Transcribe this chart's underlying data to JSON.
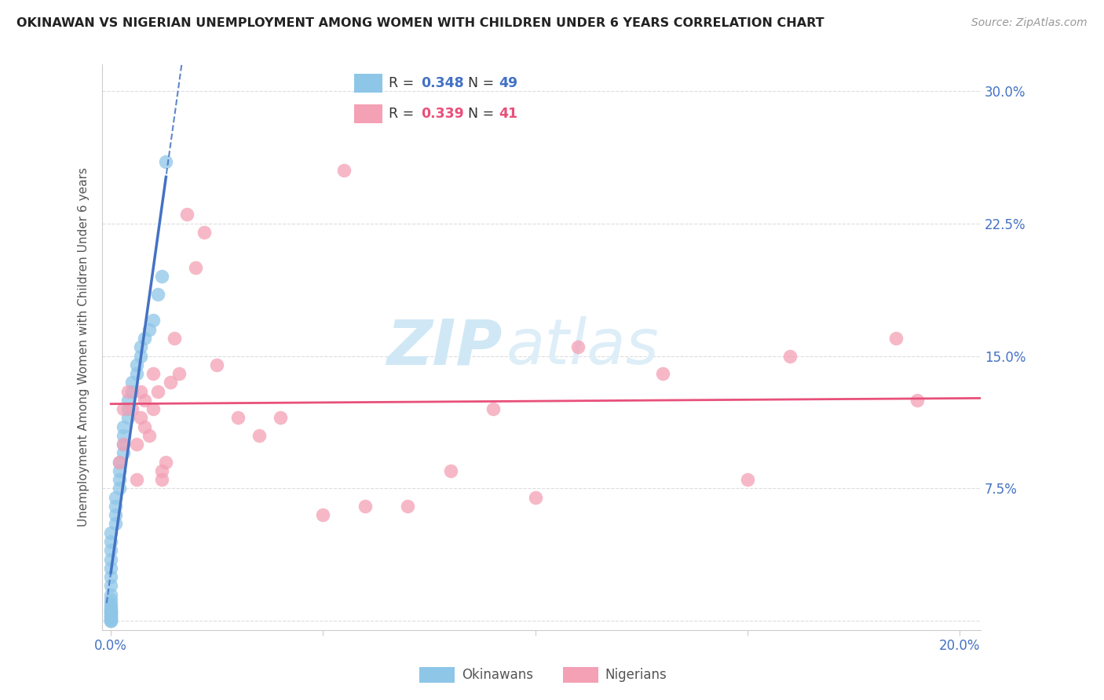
{
  "title": "OKINAWAN VS NIGERIAN UNEMPLOYMENT AMONG WOMEN WITH CHILDREN UNDER 6 YEARS CORRELATION CHART",
  "source": "Source: ZipAtlas.com",
  "ylabel": "Unemployment Among Women with Children Under 6 years",
  "xlim": [
    -0.002,
    0.205
  ],
  "ylim": [
    -0.005,
    0.315
  ],
  "x_tick_positions": [
    0.0,
    0.05,
    0.1,
    0.15,
    0.2
  ],
  "x_tick_labels": [
    "0.0%",
    "",
    "",
    "",
    "20.0%"
  ],
  "y_tick_positions": [
    0.0,
    0.075,
    0.15,
    0.225,
    0.3
  ],
  "y_tick_labels": [
    "",
    "7.5%",
    "15.0%",
    "22.5%",
    "30.0%"
  ],
  "okinawan_R": 0.348,
  "okinawan_N": 49,
  "nigerian_R": 0.339,
  "nigerian_N": 41,
  "okinawan_color": "#8ec6e8",
  "nigerian_color": "#f4a0b5",
  "okinawan_line_color": "#4472c4",
  "nigerian_line_color": "#e8507a",
  "okinawan_scatter_x": [
    0.0,
    0.0,
    0.0,
    0.0,
    0.0,
    0.0,
    0.0,
    0.0,
    0.0,
    0.0,
    0.0,
    0.0,
    0.0,
    0.0,
    0.0,
    0.0,
    0.0,
    0.0,
    0.0,
    0.0,
    0.0,
    0.0,
    0.001,
    0.001,
    0.001,
    0.001,
    0.002,
    0.002,
    0.002,
    0.002,
    0.003,
    0.003,
    0.003,
    0.003,
    0.004,
    0.004,
    0.004,
    0.005,
    0.005,
    0.006,
    0.006,
    0.007,
    0.007,
    0.008,
    0.009,
    0.01,
    0.011,
    0.012,
    0.013
  ],
  "okinawan_scatter_y": [
    0.0,
    0.0,
    0.001,
    0.002,
    0.003,
    0.003,
    0.004,
    0.005,
    0.005,
    0.006,
    0.007,
    0.008,
    0.01,
    0.012,
    0.015,
    0.02,
    0.025,
    0.03,
    0.035,
    0.04,
    0.045,
    0.05,
    0.055,
    0.06,
    0.065,
    0.07,
    0.075,
    0.08,
    0.085,
    0.09,
    0.095,
    0.1,
    0.105,
    0.11,
    0.115,
    0.12,
    0.125,
    0.13,
    0.135,
    0.14,
    0.145,
    0.15,
    0.155,
    0.16,
    0.165,
    0.17,
    0.185,
    0.195,
    0.26
  ],
  "nigerian_scatter_x": [
    0.002,
    0.003,
    0.003,
    0.004,
    0.005,
    0.006,
    0.006,
    0.007,
    0.007,
    0.008,
    0.008,
    0.009,
    0.01,
    0.01,
    0.011,
    0.012,
    0.012,
    0.013,
    0.014,
    0.015,
    0.016,
    0.018,
    0.02,
    0.022,
    0.025,
    0.03,
    0.035,
    0.04,
    0.05,
    0.055,
    0.06,
    0.07,
    0.08,
    0.09,
    0.1,
    0.11,
    0.13,
    0.15,
    0.16,
    0.185,
    0.19
  ],
  "nigerian_scatter_y": [
    0.09,
    0.12,
    0.1,
    0.13,
    0.12,
    0.08,
    0.1,
    0.13,
    0.115,
    0.11,
    0.125,
    0.105,
    0.14,
    0.12,
    0.13,
    0.08,
    0.085,
    0.09,
    0.135,
    0.16,
    0.14,
    0.23,
    0.2,
    0.22,
    0.145,
    0.115,
    0.105,
    0.115,
    0.06,
    0.255,
    0.065,
    0.065,
    0.085,
    0.12,
    0.07,
    0.155,
    0.14,
    0.08,
    0.15,
    0.16,
    0.125
  ],
  "background_color": "#ffffff",
  "grid_color": "#dddddd",
  "watermark_zip": "ZIP",
  "watermark_atlas": "atlas",
  "watermark_color": "#d0e8f5"
}
